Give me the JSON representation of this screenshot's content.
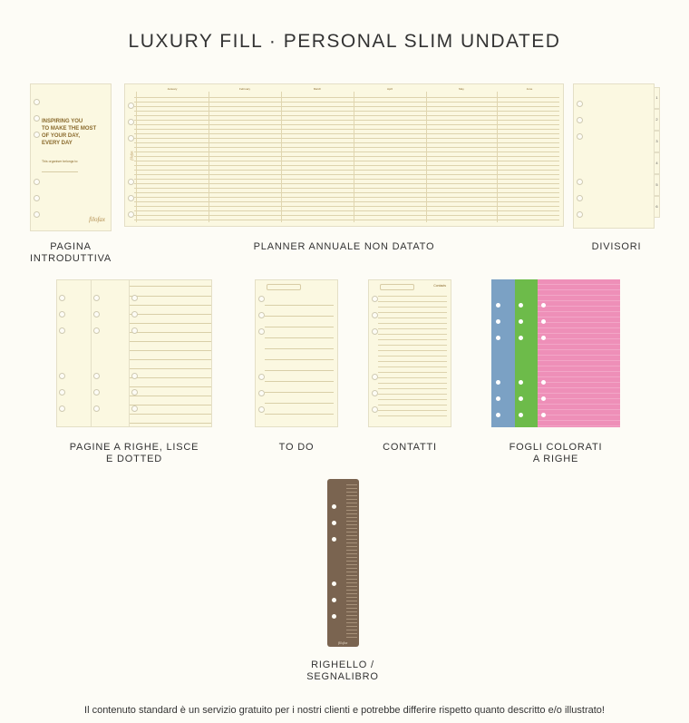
{
  "title": "LUXURY FILL · PERSONAL SLIM UNDATED",
  "items": {
    "intro": {
      "label_line1": "PAGINA",
      "label_line2": "INTRODUTTIVA",
      "headline": [
        "INSPIRING YOU",
        "TO MAKE THE MOST",
        "OF YOUR DAY,",
        "EVERY DAY"
      ],
      "sub": "This organiser belongs to:",
      "brand": "filofax"
    },
    "planner": {
      "label": "PLANNER ANNUALE NON DATATO",
      "months": [
        "January",
        "February",
        "March",
        "April",
        "May",
        "June"
      ],
      "brand": "filofax"
    },
    "dividers": {
      "label": "DIVISORI",
      "tabs": [
        "1",
        "2",
        "3",
        "4",
        "5",
        "6"
      ]
    },
    "ruled": {
      "label_line1": "PAGINE A RIGHE, LISCE",
      "label_line2": "E DOTTED"
    },
    "todo": {
      "label": "TO DO"
    },
    "contacts": {
      "label": "CONTATTI",
      "header": "Contacts"
    },
    "colored": {
      "label_line1": "FOGLI COLORATI",
      "label_line2": "A RIGHE",
      "colors": [
        "#7ba1c4",
        "#6dbb4a",
        "#ee8fb8"
      ]
    },
    "ruler": {
      "label_line1": "RIGHELLO /",
      "label_line2": "SEGNALIBRO",
      "color": "#7a6450",
      "brand": "filofax"
    }
  },
  "footer": "Il contenuto standard è un servizio gratuito per i nostri clienti e potrebbe differire rispetto quanto descritto e/o illustrato!"
}
